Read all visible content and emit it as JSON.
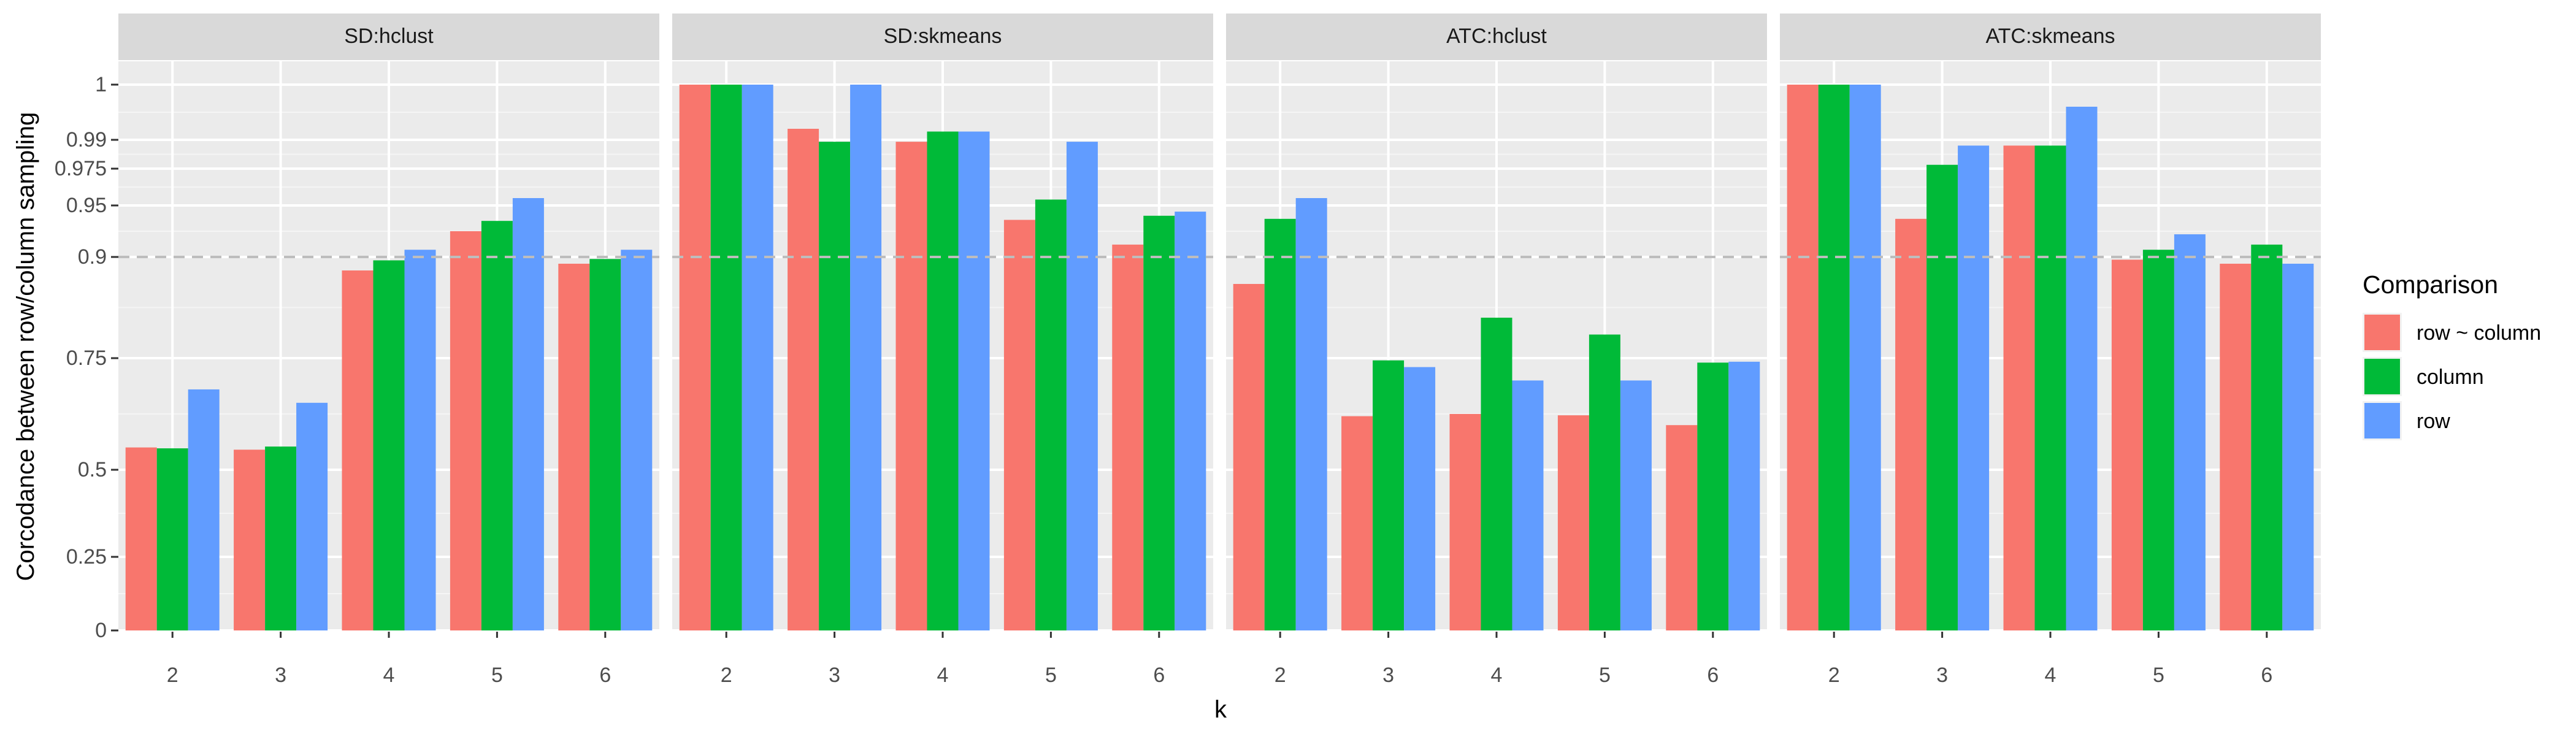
{
  "chart_data": {
    "type": "bar",
    "facet_layout": "1 row x 4 columns",
    "xlabel": "k",
    "ylabel": "Corcodance between row/column sampling",
    "categories": [
      "2",
      "3",
      "4",
      "5",
      "6"
    ],
    "y_tick_labels": [
      "0",
      "0.25",
      "0.5",
      "0.75",
      "0.9",
      "0.95",
      "0.975",
      "0.99",
      "1"
    ],
    "y_ticks": [
      0,
      0.25,
      0.5,
      0.75,
      0.9,
      0.95,
      0.975,
      0.99,
      1
    ],
    "y_scale": "nonlinear (stretched near 1)",
    "reference_line": 0.9,
    "legend": {
      "title": "Comparison",
      "position": "right",
      "entries": [
        "row ~ column",
        "column",
        "row"
      ]
    },
    "series_colors": {
      "row ~ column": "#F8766D",
      "column": "#00BA38",
      "row": "#619CFF"
    },
    "panels": [
      {
        "title": "SD:hclust",
        "series": [
          {
            "name": "row ~ column",
            "values": [
              0.55,
              0.545,
              0.88,
              0.925,
              0.89
            ]
          },
          {
            "name": "column",
            "values": [
              0.548,
              0.552,
              0.895,
              0.935,
              0.897
            ]
          },
          {
            "name": "row",
            "values": [
              0.68,
              0.65,
              0.907,
              0.955,
              0.907
            ]
          }
        ]
      },
      {
        "title": "SD:skmeans",
        "series": [
          {
            "name": "row ~ column",
            "values": [
              1.0,
              0.992,
              0.989,
              0.936,
              0.912
            ]
          },
          {
            "name": "column",
            "values": [
              1.0,
              0.989,
              0.9915,
              0.954,
              0.94
            ]
          },
          {
            "name": "row",
            "values": [
              1.0,
              1.0,
              0.9915,
              0.989,
              0.944
            ]
          }
        ]
      },
      {
        "title": "ATC:hclust",
        "series": [
          {
            "name": "row ~ column",
            "values": [
              0.86,
              0.62,
              0.625,
              0.622,
              0.6
            ]
          },
          {
            "name": "column",
            "values": [
              0.937,
              0.745,
              0.81,
              0.785,
              0.74
            ]
          },
          {
            "name": "row",
            "values": [
              0.955,
              0.73,
              0.7,
              0.7,
              0.742
            ]
          }
        ]
      },
      {
        "title": "ATC:skmeans",
        "series": [
          {
            "name": "row ~ column",
            "values": [
              1.0,
              0.937,
              0.987,
              0.896,
              0.89
            ]
          },
          {
            "name": "column",
            "values": [
              1.0,
              0.977,
              0.987,
              0.907,
              0.912
            ]
          },
          {
            "name": "row",
            "values": [
              1.0,
              0.987,
              0.996,
              0.922,
              0.89
            ]
          }
        ]
      }
    ]
  }
}
